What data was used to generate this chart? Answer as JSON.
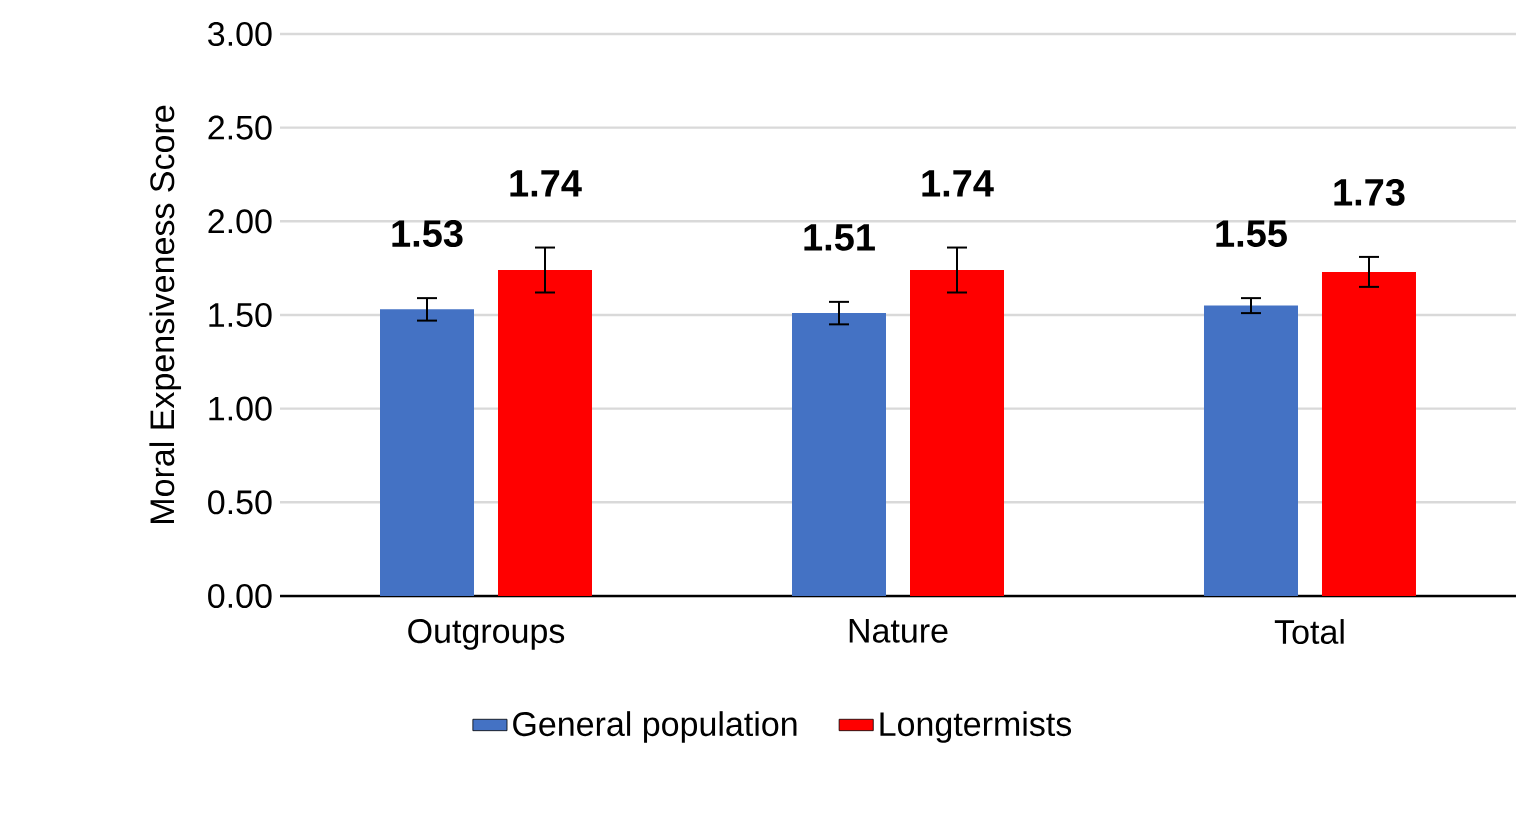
{
  "chart_data": {
    "type": "bar",
    "ylabel": "Moral Expensiveness Score",
    "categories": [
      "Outgroups",
      "Nature",
      "Total"
    ],
    "series": [
      {
        "name": "General population",
        "color": "#4472c4",
        "values": [
          1.53,
          1.51,
          1.55
        ],
        "errors": [
          0.06,
          0.06,
          0.04
        ],
        "value_labels": [
          "1.53",
          "1.51",
          "1.55"
        ]
      },
      {
        "name": "Longtermists",
        "color": "#ff0000",
        "values": [
          1.74,
          1.74,
          1.73
        ],
        "errors": [
          0.12,
          0.12,
          0.08
        ],
        "value_labels": [
          "1.74",
          "1.74",
          "1.73"
        ]
      }
    ],
    "ylim": [
      0,
      3
    ],
    "yticks": [
      {
        "value": 0,
        "label": "0.00"
      },
      {
        "value": 0.5,
        "label": "0.50"
      },
      {
        "value": 1,
        "label": "1.00"
      },
      {
        "value": 1.5,
        "label": "1.50"
      },
      {
        "value": 2,
        "label": "2.00"
      },
      {
        "value": 2.5,
        "label": "2.50"
      },
      {
        "value": 3,
        "label": "3.00"
      }
    ],
    "grid": "y",
    "legend": "bottom"
  }
}
